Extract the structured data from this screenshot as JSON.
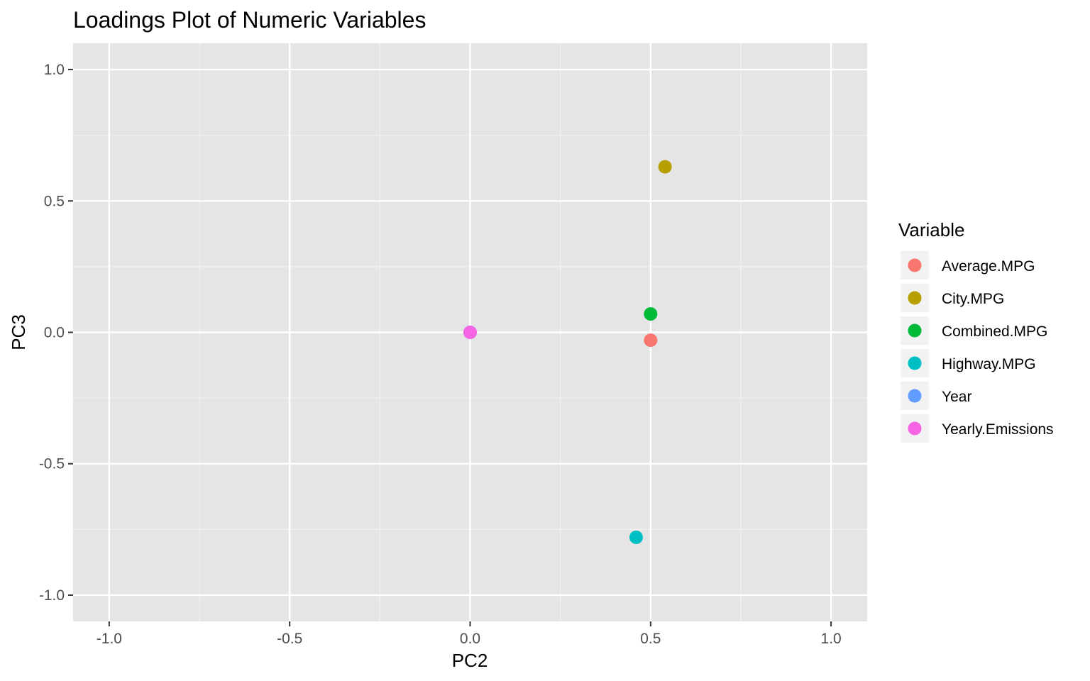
{
  "chart_data": {
    "type": "scatter",
    "title": "Loadings Plot of Numeric Variables",
    "xlabel": "PC2",
    "ylabel": "PC3",
    "xlim": [
      -1.1,
      1.1
    ],
    "ylim": [
      -1.1,
      1.1
    ],
    "x_ticks": [
      -1.0,
      -0.5,
      0.0,
      0.5,
      1.0
    ],
    "y_ticks": [
      -1.0,
      -0.5,
      0.0,
      0.5,
      1.0
    ],
    "x_tick_labels": [
      "-1.0",
      "-0.5",
      "0.0",
      "0.5",
      "1.0"
    ],
    "y_tick_labels": [
      "-1.0",
      "-0.5",
      "0.0",
      "0.5",
      "1.0"
    ],
    "grid": true,
    "legend": {
      "title": "Variable",
      "position": "right"
    },
    "series": [
      {
        "name": "Average.MPG",
        "color": "#F8766D",
        "x": 0.5,
        "y": -0.03
      },
      {
        "name": "City.MPG",
        "color": "#B79F00",
        "x": 0.54,
        "y": 0.63
      },
      {
        "name": "Combined.MPG",
        "color": "#00BA38",
        "x": 0.5,
        "y": 0.07
      },
      {
        "name": "Highway.MPG",
        "color": "#00BFC4",
        "x": 0.46,
        "y": -0.78
      },
      {
        "name": "Year",
        "color": "#619CFF",
        "x": 0.0,
        "y": 0.0
      },
      {
        "name": "Yearly.Emissions",
        "color": "#F564E3",
        "x": 0.0,
        "y": 0.0
      }
    ]
  }
}
